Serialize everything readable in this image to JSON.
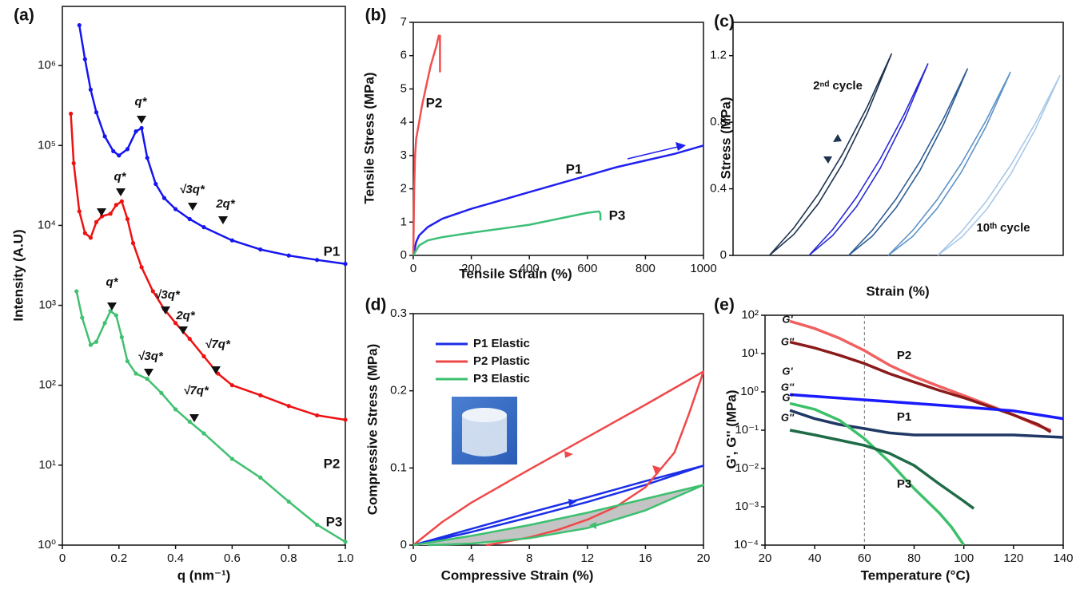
{
  "chart_data": [
    {
      "type": "scatter",
      "panel_label": "(a)",
      "x_label": "q (nm⁻¹)",
      "y_label": "Intensity (A.U)",
      "xlim": [
        0,
        1
      ],
      "ylim": [
        1,
        5500000
      ],
      "yscale": "log",
      "xticks": [
        0,
        0.2,
        0.4,
        0.6,
        0.8,
        {
          "value": 1,
          "label": "1.0"
        }
      ],
      "yticks": [
        {
          "value": 1,
          "label": "10⁰"
        },
        {
          "value": 10,
          "label": "10¹"
        },
        {
          "value": 100,
          "label": "10²"
        },
        {
          "value": 1000,
          "label": "10³"
        },
        {
          "value": 10000,
          "label": "10⁴"
        },
        {
          "value": 100000,
          "label": "10⁵"
        },
        {
          "value": 1000000,
          "label": "10⁶"
        }
      ],
      "series": [
        {
          "name": "P1",
          "color": "#1515f0",
          "x": [
            0.06,
            0.08,
            0.1,
            0.12,
            0.15,
            0.18,
            0.2,
            0.23,
            0.26,
            0.28,
            0.3,
            0.33,
            0.36,
            0.4,
            0.45,
            0.5,
            0.6,
            0.7,
            0.8,
            0.9,
            1.0
          ],
          "values": [
            3200000,
            1200000,
            500000,
            260000,
            130000,
            85000,
            75000,
            90000,
            150000,
            165000,
            70000,
            33000,
            22000,
            16000,
            12000,
            9500,
            6500,
            5000,
            4200,
            3700,
            3300
          ]
        },
        {
          "name": "P2",
          "color": "#ee1111",
          "x": [
            0.03,
            0.04,
            0.06,
            0.08,
            0.1,
            0.12,
            0.14,
            0.17,
            0.19,
            0.21,
            0.23,
            0.25,
            0.28,
            0.32,
            0.36,
            0.4,
            0.45,
            0.5,
            0.55,
            0.6,
            0.7,
            0.8,
            0.9,
            1.0
          ],
          "values": [
            250000,
            60000,
            15000,
            8000,
            7000,
            11000,
            13000,
            14000,
            18000,
            20000,
            12000,
            6000,
            3000,
            1500,
            900,
            600,
            380,
            230,
            140,
            100,
            75,
            55,
            42,
            37
          ]
        },
        {
          "name": "P3",
          "color": "#40c070",
          "x": [
            0.05,
            0.07,
            0.1,
            0.12,
            0.15,
            0.17,
            0.19,
            0.21,
            0.23,
            0.26,
            0.3,
            0.35,
            0.4,
            0.45,
            0.5,
            0.6,
            0.7,
            0.8,
            0.9,
            1.0
          ],
          "values": [
            1500,
            700,
            320,
            350,
            600,
            850,
            750,
            400,
            200,
            140,
            120,
            80,
            50,
            35,
            25,
            12,
            7,
            3.5,
            1.8,
            1.1
          ]
        }
      ],
      "annotations": [
        "q*",
        "√3q*",
        "2q*",
        "q*",
        "√3q*",
        "2q*",
        "√7q*",
        "q*",
        "√3q*",
        "√7q*"
      ]
    },
    {
      "type": "line",
      "panel_label": "(b)",
      "x_label": "Tensile Strain (%)",
      "y_label": "Tensile Stress (MPa)",
      "xlim": [
        0,
        1000
      ],
      "ylim": [
        0,
        7
      ],
      "xticks": [
        0,
        200,
        400,
        600,
        800,
        1000
      ],
      "yticks": [
        0,
        1,
        2,
        3,
        4,
        5,
        6,
        7
      ],
      "series": [
        {
          "name": "P1",
          "color": "#2020f0",
          "x": [
            0,
            10,
            20,
            50,
            100,
            200,
            300,
            400,
            500,
            600,
            700,
            800,
            900,
            1000
          ],
          "values": [
            0,
            0.4,
            0.6,
            0.85,
            1.1,
            1.4,
            1.65,
            1.9,
            2.15,
            2.4,
            2.65,
            2.85,
            3.05,
            3.3
          ]
        },
        {
          "name": "P2",
          "color": "#f05050",
          "x": [
            0,
            3,
            6,
            10,
            20,
            30,
            40,
            50,
            60,
            70,
            80,
            88,
            92,
            92
          ],
          "values": [
            0,
            2.0,
            3.0,
            3.5,
            4.0,
            4.5,
            4.9,
            5.3,
            5.7,
            6.0,
            6.3,
            6.6,
            6.6,
            5.5
          ]
        },
        {
          "name": "P3",
          "color": "#3cbf78",
          "x": [
            0,
            20,
            50,
            100,
            200,
            300,
            400,
            500,
            600,
            640,
            645,
            645
          ],
          "values": [
            0,
            0.3,
            0.45,
            0.55,
            0.68,
            0.8,
            0.92,
            1.1,
            1.28,
            1.32,
            1.25,
            1.05
          ]
        }
      ]
    },
    {
      "type": "line",
      "panel_label": "(c)",
      "x_label": "Strain (%)",
      "y_label": "Stress (MPa)",
      "xlim": [
        0,
        100
      ],
      "ylim": [
        0,
        1.4
      ],
      "yticks": [
        0,
        0.4,
        0.8,
        1.2
      ],
      "series": [
        {
          "color": "#1e3350",
          "x": [
            11,
            18.4,
            25.8,
            33.2,
            40.6,
            48,
            40.6,
            33.2,
            25.8,
            18.4,
            11
          ],
          "values": [
            0,
            0.165,
            0.368,
            0.61,
            0.891,
            1.21,
            0.852,
            0.552,
            0.31,
            0.126,
            0
          ]
        },
        {
          "color": "#2a2ad6",
          "x": [
            23,
            30.2,
            37.4,
            44.6,
            51.8,
            59,
            51.8,
            44.6,
            37.4,
            30.2,
            23
          ],
          "values": [
            0,
            0.156,
            0.35,
            0.58,
            0.846,
            1.15,
            0.81,
            0.524,
            0.294,
            0.12,
            0
          ]
        },
        {
          "color": "#2e5e94",
          "x": [
            35,
            42.2,
            49.4,
            56.6,
            63.8,
            71,
            63.8,
            56.6,
            49.4,
            42.2,
            35
          ],
          "values": [
            0,
            0.152,
            0.34,
            0.564,
            0.824,
            1.12,
            0.788,
            0.511,
            0.287,
            0.116,
            0
          ]
        },
        {
          "color": "#5e93c8",
          "x": [
            47,
            54.4,
            61.8,
            69.2,
            76.6,
            84,
            76.6,
            69.2,
            61.8,
            54.4,
            47
          ],
          "values": [
            0,
            0.15,
            0.334,
            0.554,
            0.81,
            1.1,
            0.774,
            0.502,
            0.282,
            0.114,
            0
          ]
        },
        {
          "color": "#a8c8e8",
          "x": [
            62,
            69.4,
            76.8,
            84.2,
            91.6,
            99,
            91.6,
            84.2,
            76.8,
            69.4,
            62
          ],
          "values": [
            0,
            0.147,
            0.328,
            0.544,
            0.795,
            1.08,
            0.76,
            0.492,
            0.276,
            0.112,
            0
          ]
        }
      ],
      "annotations": [
        "2ⁿᵈ cycle",
        "10ᵗʰ cycle"
      ]
    },
    {
      "type": "line",
      "panel_label": "(d)",
      "x_label": "Compressive Strain (%)",
      "y_label": "Compressive Stress (MPa)",
      "xlim": [
        0,
        20
      ],
      "ylim": [
        0,
        0.3
      ],
      "xticks": [
        0,
        4,
        8,
        12,
        16,
        20
      ],
      "yticks": [
        0,
        0.1,
        0.2,
        0.3
      ],
      "legend": true,
      "series": [
        {
          "name": "P1 Elastic",
          "color": "#1a2ee8",
          "x": [
            0,
            4,
            8,
            12,
            16,
            20,
            16,
            12,
            8,
            4,
            0
          ],
          "values": [
            0,
            0.021,
            0.042,
            0.062,
            0.083,
            0.103,
            0.078,
            0.056,
            0.036,
            0.017,
            0
          ]
        },
        {
          "name": "P2 Plastic",
          "color": "#f04848",
          "x": [
            0,
            2,
            4,
            8,
            12,
            16,
            20,
            19,
            18,
            16,
            14,
            12,
            10,
            8,
            6,
            5
          ],
          "values": [
            0,
            0.03,
            0.055,
            0.098,
            0.14,
            0.182,
            0.225,
            0.17,
            0.12,
            0.075,
            0.05,
            0.033,
            0.02,
            0.01,
            0.003,
            0
          ]
        },
        {
          "name": "P3 Elastic",
          "color": "#3cc070",
          "fill": "#c4c4c4",
          "x": [
            0,
            4,
            8,
            12,
            16,
            20,
            16,
            12,
            8,
            4,
            1
          ],
          "values": [
            0,
            0.012,
            0.026,
            0.042,
            0.06,
            0.078,
            0.045,
            0.022,
            0.009,
            0.002,
            0
          ]
        }
      ]
    },
    {
      "type": "line",
      "panel_label": "(e)",
      "x_label": "Temperature (°C)",
      "y_label": "G', G'' (MPa)",
      "xlim": [
        20,
        140
      ],
      "ylim": [
        0.0001,
        100
      ],
      "yscale": "log",
      "vline": 60,
      "xticks": [
        20,
        40,
        60,
        80,
        100,
        120,
        140
      ],
      "yticks": [
        {
          "value": 0.0001,
          "label": "10⁻⁴"
        },
        {
          "value": 0.001,
          "label": "10⁻³"
        },
        {
          "value": 0.01,
          "label": "10⁻²"
        },
        {
          "value": 0.1,
          "label": "10⁻¹"
        },
        {
          "value": 1,
          "label": "10⁰"
        },
        {
          "value": 10,
          "label": "10¹"
        },
        {
          "value": 100,
          "label": "10²"
        }
      ],
      "series": [
        {
          "name": "G'",
          "color": "#f06060",
          "x": [
            30,
            40,
            50,
            60,
            70,
            80,
            90,
            100,
            110,
            120,
            130,
            135
          ],
          "values": [
            70,
            45,
            25,
            12,
            5,
            2.5,
            1.4,
            0.8,
            0.45,
            0.25,
            0.13,
            0.1
          ]
        },
        {
          "name": "G''",
          "color": "#8b1a1a",
          "x": [
            30,
            40,
            50,
            60,
            70,
            80,
            90,
            100,
            110,
            120,
            130,
            135
          ],
          "values": [
            20,
            14,
            9,
            5.5,
            3,
            1.8,
            1.1,
            0.7,
            0.42,
            0.25,
            0.14,
            0.09
          ]
        },
        {
          "name": "G'",
          "color": "#1a1aff",
          "x": [
            30,
            60,
            90,
            120,
            140
          ],
          "values": [
            0.85,
            0.62,
            0.45,
            0.32,
            0.2
          ]
        },
        {
          "name": "G''",
          "color": "#1f3864",
          "x": [
            30,
            40,
            50,
            60,
            70,
            80,
            90,
            100,
            120,
            140
          ],
          "values": [
            0.33,
            0.2,
            0.14,
            0.11,
            0.085,
            0.075,
            0.075,
            0.075,
            0.075,
            0.065
          ]
        },
        {
          "name": "G'",
          "color": "#3cc06a",
          "x": [
            30,
            40,
            50,
            60,
            70,
            80,
            90,
            95,
            100
          ],
          "values": [
            0.5,
            0.35,
            0.18,
            0.06,
            0.015,
            0.003,
            0.0007,
            0.0003,
            0.0001
          ]
        },
        {
          "name": "G''",
          "color": "#1e6b47",
          "x": [
            30,
            40,
            50,
            60,
            70,
            80,
            90,
            100,
            104
          ],
          "values": [
            0.1,
            0.075,
            0.055,
            0.04,
            0.025,
            0.012,
            0.004,
            0.0014,
            0.0009
          ]
        }
      ],
      "annotations": [
        "P2",
        "P1",
        "P3"
      ]
    }
  ]
}
